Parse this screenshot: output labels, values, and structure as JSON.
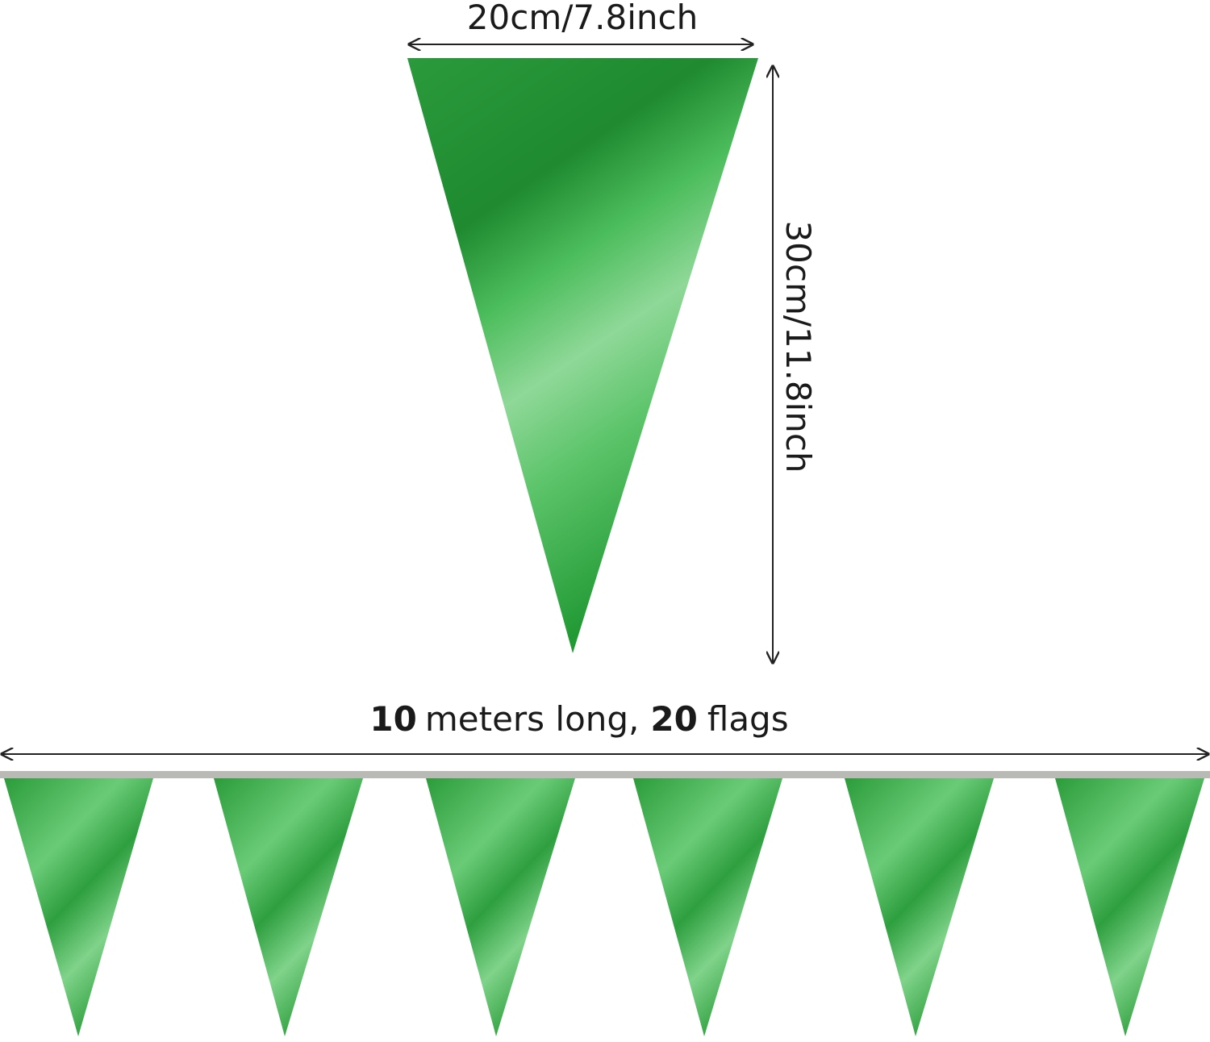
{
  "width_label": "20cm/7.8inch",
  "height_label": "30cm/11.8inch",
  "length_label": {
    "count_length": "10",
    "length_text": "meters long,",
    "count_flags": "20",
    "flags_text": "flags"
  }
}
